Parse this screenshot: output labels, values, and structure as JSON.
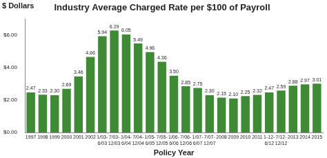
{
  "chart_data": {
    "type": "bar",
    "title": "Industry Average Charged Rate per $100 of Payroll",
    "y_label": "$ Dollars",
    "x_label": "Policy Year",
    "categories": [
      "1997",
      "1998",
      "1999",
      "2000",
      "2001",
      "2002",
      "1/03-6/03",
      "7/03-12/03",
      "1/04-6/04",
      "7/04-12/04",
      "1/05-6/05",
      "7/05-12/05",
      "1/06-6/06",
      "7/06-12/06",
      "1/07-6/07",
      "7/07-12/07",
      "2008",
      "2009",
      "2010",
      "2011",
      "1-12-6/12",
      "7/12-12/12",
      "2013",
      "2014",
      "2015"
    ],
    "values": [
      2.47,
      2.33,
      2.3,
      2.69,
      3.46,
      4.66,
      5.94,
      6.29,
      6.05,
      5.49,
      4.96,
      4.36,
      3.5,
      2.85,
      2.75,
      2.3,
      2.15,
      2.1,
      2.25,
      2.32,
      2.47,
      2.59,
      2.88,
      2.97,
      3.01
    ],
    "value_labels": [
      "2.47",
      "2.33",
      "2.30",
      "2.69",
      "3.46",
      "4.66",
      "5.94",
      "6.29",
      "6.05",
      "5.49",
      "4.96",
      "4.36",
      "3.50",
      "2.85",
      "2.75",
      "2.30",
      "2.15",
      "2.10",
      "2.25",
      "2.32",
      "2.47",
      "2.59",
      "2.88",
      "2.97",
      "3.01"
    ],
    "data_labels": true,
    "color": "#3f8a34",
    "ylim": [
      0,
      7
    ],
    "yticks": [
      {
        "value": 0,
        "label": "$0.00"
      },
      {
        "value": 2,
        "label": "$2.00"
      },
      {
        "value": 4,
        "label": "$4.00"
      },
      {
        "value": 6,
        "label": "$6.00"
      }
    ],
    "grid": false
  }
}
